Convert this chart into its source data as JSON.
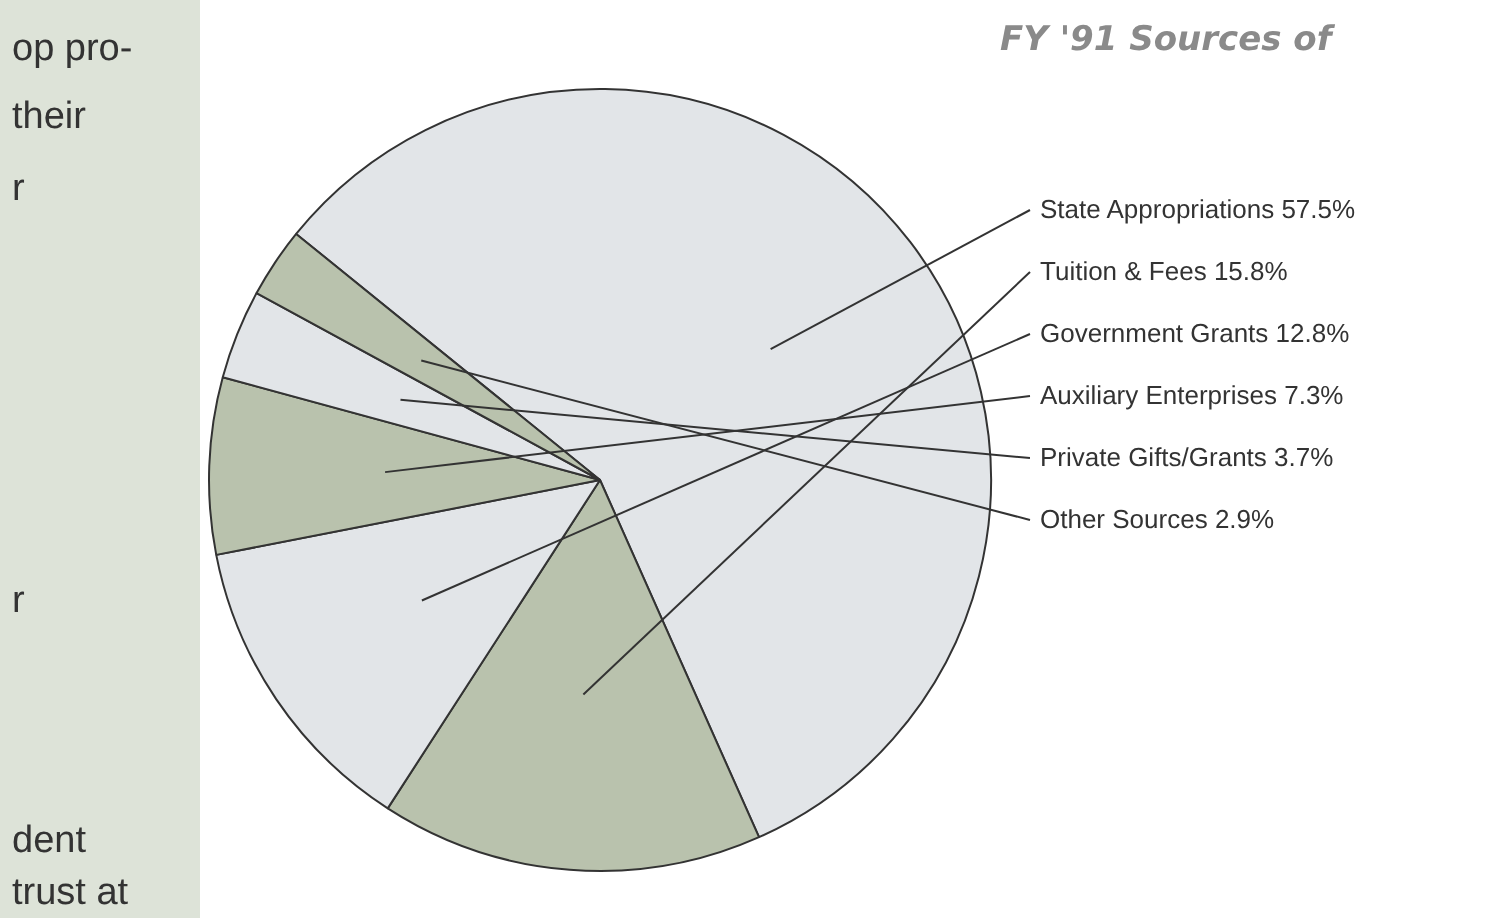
{
  "chart_data": {
    "type": "pie",
    "title": "FY '91 Sources of",
    "categories": [
      "State Appropriations",
      "Tuition & Fees",
      "Government Grants",
      "Auxiliary Enterprises",
      "Private Gifts/Grants",
      "Other Sources"
    ],
    "values": [
      57.5,
      15.8,
      12.8,
      7.3,
      3.7,
      2.9
    ],
    "value_labels": [
      "57.5%",
      "15.8%",
      "12.8%",
      "7.3%",
      "3.7%",
      "2.9%"
    ],
    "colors": [
      "#e2e5e8",
      "#b9c2ad",
      "#e2e5e8",
      "#b9c2ad",
      "#e2e5e8",
      "#b9c2ad"
    ],
    "legend": false,
    "annotations": [
      "op pro-",
      "their",
      "r",
      "r",
      "dent",
      "trust at"
    ]
  }
}
